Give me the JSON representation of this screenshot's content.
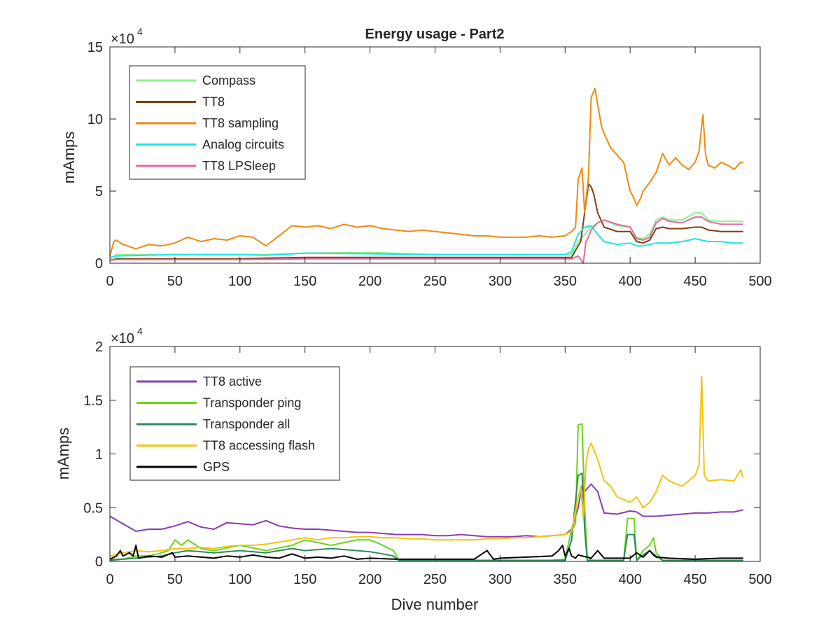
{
  "chart_data": [
    {
      "type": "line",
      "title": "Energy usage - Part2",
      "xlabel": "",
      "ylabel": "mAmps",
      "exponent_base": "×10",
      "exponent_power": "4",
      "xlim": [
        0,
        500
      ],
      "ylim": [
        0,
        15
      ],
      "xticks": [
        0,
        50,
        100,
        150,
        200,
        250,
        300,
        350,
        400,
        450,
        500
      ],
      "yticks": [
        0,
        5,
        10,
        15
      ],
      "grid": false,
      "legend_position": "top-left",
      "series": [
        {
          "name": "Compass",
          "color": "#90ee90",
          "x": [
            0,
            5,
            50,
            100,
            120,
            150,
            200,
            250,
            300,
            355,
            360,
            365,
            370,
            375,
            380,
            390,
            400,
            405,
            410,
            415,
            420,
            425,
            430,
            440,
            450,
            455,
            460,
            470,
            480,
            487
          ],
          "y": [
            0.3,
            0.6,
            0.6,
            0.6,
            0.6,
            0.7,
            0.75,
            0.6,
            0.6,
            0.6,
            1.5,
            2.0,
            2.5,
            2.8,
            3.0,
            2.6,
            2.5,
            1.8,
            1.7,
            2.0,
            3.0,
            3.2,
            3.0,
            3.0,
            3.5,
            3.5,
            3.0,
            2.9,
            2.9,
            2.9
          ]
        },
        {
          "name": "TT8",
          "color": "#7b3f12",
          "x": [
            0,
            5,
            50,
            100,
            120,
            150,
            200,
            250,
            300,
            355,
            360,
            362,
            365,
            368,
            370,
            372,
            375,
            380,
            390,
            400,
            405,
            410,
            415,
            420,
            425,
            430,
            440,
            450,
            455,
            460,
            470,
            480,
            487
          ],
          "y": [
            0.2,
            0.3,
            0.3,
            0.3,
            0.35,
            0.4,
            0.4,
            0.4,
            0.4,
            0.4,
            1.2,
            1.5,
            3.5,
            5.5,
            5.3,
            4.8,
            3.5,
            2.5,
            2.2,
            2.2,
            1.5,
            1.4,
            1.6,
            2.4,
            2.5,
            2.4,
            2.4,
            2.5,
            2.5,
            2.3,
            2.2,
            2.2,
            2.2
          ]
        },
        {
          "name": "TT8 sampling",
          "color": "#f0890f",
          "x": [
            0,
            3,
            5,
            10,
            20,
            30,
            40,
            50,
            60,
            70,
            80,
            90,
            100,
            110,
            120,
            130,
            140,
            150,
            160,
            170,
            180,
            190,
            200,
            210,
            220,
            230,
            240,
            250,
            260,
            270,
            280,
            290,
            300,
            310,
            320,
            330,
            340,
            350,
            355,
            358,
            360,
            363,
            365,
            368,
            370,
            373,
            375,
            378,
            380,
            385,
            390,
            395,
            400,
            403,
            405,
            408,
            410,
            415,
            420,
            425,
            430,
            435,
            440,
            445,
            450,
            453,
            456,
            458,
            460,
            465,
            470,
            475,
            480,
            485,
            487
          ],
          "y": [
            0.5,
            1.5,
            1.6,
            1.3,
            1.0,
            1.3,
            1.2,
            1.4,
            1.8,
            1.5,
            1.7,
            1.6,
            1.9,
            1.8,
            1.2,
            1.9,
            2.6,
            2.5,
            2.6,
            2.4,
            2.7,
            2.5,
            2.6,
            2.4,
            2.3,
            2.2,
            2.3,
            2.2,
            2.1,
            2.0,
            1.9,
            1.9,
            1.8,
            1.8,
            1.8,
            1.9,
            1.8,
            1.9,
            2.2,
            2.5,
            5.8,
            6.6,
            3.5,
            6.0,
            11.5,
            12.1,
            11.0,
            9.5,
            9.0,
            8.0,
            7.5,
            7.0,
            5.0,
            4.5,
            4.0,
            4.5,
            5.0,
            5.6,
            6.3,
            7.6,
            6.8,
            7.3,
            6.8,
            6.5,
            7.0,
            7.8,
            10.3,
            7.5,
            6.8,
            6.6,
            7.0,
            6.8,
            6.5,
            7.0,
            7.0
          ]
        },
        {
          "name": "Analog circuits",
          "color": "#19e6e6",
          "x": [
            0,
            5,
            50,
            100,
            120,
            150,
            200,
            250,
            300,
            350,
            355,
            360,
            365,
            370,
            375,
            380,
            390,
            400,
            405,
            410,
            420,
            430,
            440,
            450,
            460,
            470,
            480,
            487
          ],
          "y": [
            0.4,
            0.5,
            0.6,
            0.6,
            0.55,
            0.7,
            0.65,
            0.6,
            0.6,
            0.6,
            0.8,
            2.0,
            2.5,
            2.6,
            2.0,
            1.5,
            1.3,
            1.4,
            1.2,
            1.2,
            1.4,
            1.4,
            1.5,
            1.7,
            1.5,
            1.5,
            1.4,
            1.4
          ]
        },
        {
          "name": "TT8 LPSleep",
          "color": "#e5689f",
          "x": [
            0,
            5,
            50,
            100,
            150,
            200,
            250,
            300,
            355,
            360,
            364,
            366,
            368,
            370,
            375,
            380,
            390,
            400,
            405,
            410,
            415,
            420,
            425,
            430,
            440,
            450,
            455,
            460,
            470,
            480,
            487
          ],
          "y": [
            0.2,
            0.25,
            0.25,
            0.25,
            0.3,
            0.3,
            0.3,
            0.3,
            0.3,
            0.5,
            0.0,
            1.5,
            1.8,
            2.3,
            2.8,
            3.0,
            2.7,
            2.5,
            1.7,
            1.6,
            1.8,
            2.8,
            3.1,
            2.9,
            2.8,
            3.2,
            3.2,
            2.9,
            2.7,
            2.7,
            2.7
          ]
        }
      ]
    },
    {
      "type": "line",
      "title": "",
      "xlabel": "Dive number",
      "ylabel": "mAmps",
      "exponent_base": "×10",
      "exponent_power": "4",
      "xlim": [
        0,
        500
      ],
      "ylim": [
        0,
        2
      ],
      "xticks": [
        0,
        50,
        100,
        150,
        200,
        250,
        300,
        350,
        400,
        450,
        500
      ],
      "yticks": [
        0,
        0.5,
        1,
        1.5,
        2
      ],
      "ytick_labels": [
        "0",
        "0.5",
        "1",
        "1.5",
        "2"
      ],
      "grid": false,
      "legend_position": "top-left",
      "series": [
        {
          "name": "TT8 active",
          "color": "#8a3db3",
          "x": [
            0,
            10,
            20,
            30,
            40,
            50,
            60,
            70,
            80,
            90,
            100,
            110,
            120,
            130,
            140,
            150,
            160,
            170,
            180,
            190,
            200,
            210,
            220,
            230,
            240,
            250,
            260,
            270,
            280,
            290,
            300,
            310,
            320,
            330,
            340,
            350,
            355,
            360,
            363,
            365,
            370,
            375,
            380,
            390,
            400,
            405,
            410,
            420,
            430,
            440,
            450,
            460,
            470,
            480,
            487
          ],
          "y": [
            0.42,
            0.35,
            0.28,
            0.3,
            0.3,
            0.33,
            0.37,
            0.32,
            0.3,
            0.36,
            0.35,
            0.34,
            0.38,
            0.33,
            0.31,
            0.3,
            0.3,
            0.29,
            0.28,
            0.27,
            0.27,
            0.26,
            0.25,
            0.25,
            0.25,
            0.24,
            0.24,
            0.25,
            0.24,
            0.23,
            0.23,
            0.23,
            0.24,
            0.23,
            0.24,
            0.25,
            0.3,
            0.5,
            0.7,
            0.65,
            0.72,
            0.65,
            0.45,
            0.44,
            0.47,
            0.46,
            0.42,
            0.42,
            0.43,
            0.44,
            0.45,
            0.45,
            0.46,
            0.46,
            0.48
          ]
        },
        {
          "name": "Transponder ping",
          "color": "#6ad41e",
          "x": [
            0,
            10,
            20,
            30,
            40,
            45,
            50,
            55,
            60,
            70,
            80,
            100,
            120,
            140,
            150,
            170,
            190,
            200,
            210,
            218,
            222,
            230,
            250,
            300,
            340,
            350,
            355,
            358,
            360,
            363,
            365,
            367,
            370,
            380,
            390,
            395,
            398,
            403,
            405,
            410,
            415,
            418,
            420,
            425,
            430,
            450,
            470,
            487
          ],
          "y": [
            0.02,
            0.02,
            0.05,
            0.05,
            0.08,
            0.1,
            0.2,
            0.15,
            0.2,
            0.12,
            0.1,
            0.15,
            0.1,
            0.15,
            0.2,
            0.15,
            0.2,
            0.2,
            0.15,
            0.1,
            0.02,
            0.01,
            0.01,
            0.01,
            0.01,
            0.02,
            0.3,
            0.35,
            1.27,
            1.28,
            0.5,
            0.05,
            0.01,
            0.01,
            0.01,
            0.01,
            0.4,
            0.4,
            0.01,
            0.1,
            0.15,
            0.22,
            0.08,
            0.01,
            0.01,
            0.01,
            0.01,
            0.01
          ]
        },
        {
          "name": "Transponder all",
          "color": "#2e8b57",
          "x": [
            0,
            10,
            20,
            40,
            50,
            60,
            80,
            100,
            120,
            140,
            150,
            170,
            190,
            200,
            210,
            218,
            222,
            250,
            300,
            350,
            355,
            360,
            363,
            365,
            367,
            370,
            380,
            395,
            398,
            403,
            405,
            410,
            415,
            420,
            425,
            450,
            487
          ],
          "y": [
            0.01,
            0.02,
            0.03,
            0.05,
            0.08,
            0.1,
            0.08,
            0.1,
            0.08,
            0.12,
            0.1,
            0.12,
            0.1,
            0.09,
            0.07,
            0.05,
            0.01,
            0.01,
            0.01,
            0.01,
            0.2,
            0.8,
            0.82,
            0.3,
            0.01,
            0.01,
            0.01,
            0.01,
            0.25,
            0.25,
            0.01,
            0.06,
            0.1,
            0.05,
            0.01,
            0.01,
            0.01
          ]
        },
        {
          "name": "TT8 accessing flash",
          "color": "#f2c40f",
          "x": [
            0,
            10,
            20,
            30,
            40,
            50,
            60,
            70,
            80,
            90,
            100,
            110,
            120,
            130,
            140,
            150,
            160,
            170,
            180,
            190,
            200,
            210,
            220,
            230,
            240,
            250,
            260,
            270,
            280,
            290,
            300,
            310,
            320,
            330,
            340,
            350,
            355,
            360,
            362,
            364,
            366,
            368,
            370,
            375,
            380,
            385,
            390,
            400,
            405,
            410,
            415,
            420,
            425,
            430,
            440,
            450,
            453,
            455,
            457,
            460,
            470,
            480,
            485,
            487
          ],
          "y": [
            0.05,
            0.08,
            0.1,
            0.09,
            0.1,
            0.12,
            0.12,
            0.13,
            0.12,
            0.14,
            0.15,
            0.15,
            0.16,
            0.18,
            0.2,
            0.22,
            0.2,
            0.22,
            0.22,
            0.23,
            0.23,
            0.22,
            0.22,
            0.21,
            0.21,
            0.2,
            0.2,
            0.2,
            0.2,
            0.21,
            0.21,
            0.22,
            0.22,
            0.23,
            0.24,
            0.25,
            0.28,
            0.6,
            0.7,
            0.4,
            0.9,
            1.05,
            1.1,
            0.95,
            0.75,
            0.7,
            0.6,
            0.55,
            0.6,
            0.5,
            0.55,
            0.65,
            0.8,
            0.75,
            0.7,
            0.8,
            0.9,
            1.72,
            0.8,
            0.75,
            0.76,
            0.75,
            0.85,
            0.78
          ]
        },
        {
          "name": "GPS",
          "color": "#000000",
          "x": [
            0,
            5,
            8,
            10,
            15,
            18,
            20,
            22,
            30,
            40,
            48,
            50,
            60,
            80,
            90,
            100,
            110,
            120,
            130,
            140,
            150,
            160,
            170,
            180,
            190,
            200,
            220,
            240,
            260,
            280,
            290,
            295,
            300,
            320,
            340,
            345,
            348,
            350,
            353,
            355,
            358,
            360,
            370,
            375,
            380,
            400,
            405,
            410,
            415,
            418,
            420,
            430,
            450,
            470,
            487
          ],
          "y": [
            0.02,
            0.05,
            0.1,
            0.05,
            0.08,
            0.05,
            0.15,
            0.03,
            0.05,
            0.04,
            0.08,
            0.04,
            0.05,
            0.03,
            0.05,
            0.04,
            0.06,
            0.04,
            0.03,
            0.07,
            0.03,
            0.04,
            0.03,
            0.05,
            0.02,
            0.03,
            0.02,
            0.02,
            0.02,
            0.02,
            0.1,
            0.02,
            0.03,
            0.04,
            0.05,
            0.1,
            0.15,
            0.05,
            0.12,
            0.05,
            0.03,
            0.06,
            0.03,
            0.1,
            0.03,
            0.03,
            0.08,
            0.04,
            0.1,
            0.06,
            0.04,
            0.03,
            0.02,
            0.03,
            0.03
          ]
        }
      ]
    }
  ]
}
